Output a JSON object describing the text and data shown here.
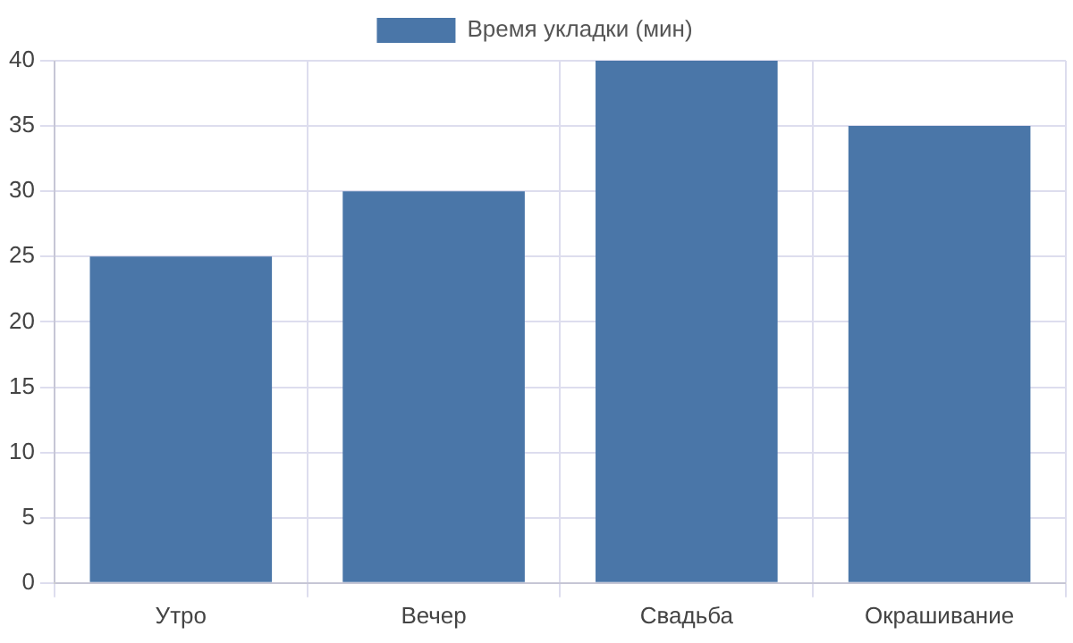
{
  "chart_data": {
    "type": "bar",
    "categories": [
      "Утро",
      "Вечер",
      "Свадьба",
      "Окрашивание"
    ],
    "series": [
      {
        "name": "Время укладки (мин)",
        "color": "#4a76a8",
        "values": [
          25,
          30,
          40,
          35
        ]
      }
    ],
    "ylim": [
      0,
      40
    ],
    "yticks": [
      0,
      5,
      10,
      15,
      20,
      25,
      30,
      35,
      40
    ],
    "grid": true,
    "legend": "top"
  }
}
